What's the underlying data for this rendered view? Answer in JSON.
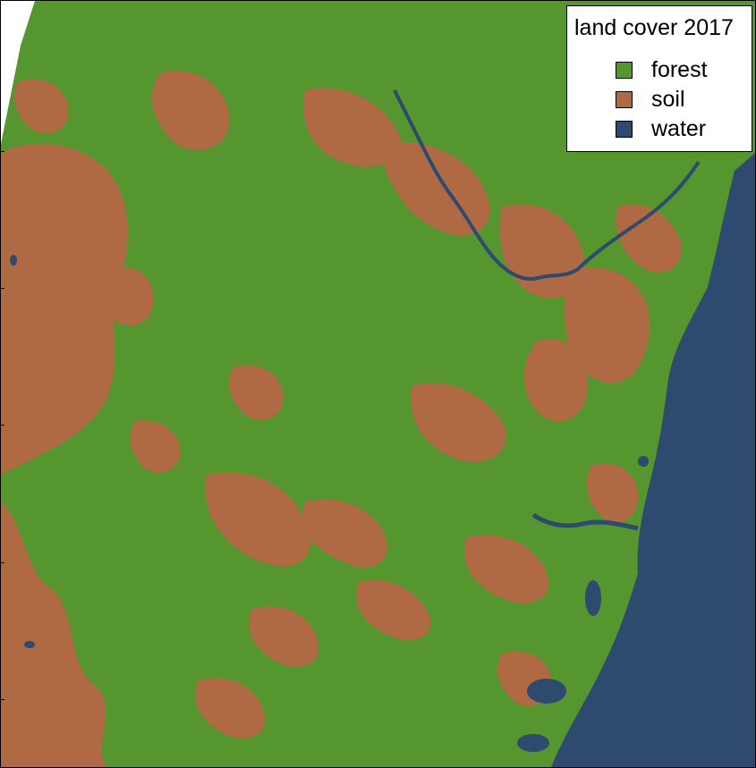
{
  "legend": {
    "title": "land cover 2017",
    "items": [
      {
        "label": "forest",
        "color": "#55962f"
      },
      {
        "label": "soil",
        "color": "#b06a43"
      },
      {
        "label": "water",
        "color": "#2e4a6e"
      }
    ]
  },
  "colors": {
    "forest": "#55962f",
    "soil": "#b06a43",
    "water": "#2e4a6e",
    "background": "#ffffff"
  }
}
